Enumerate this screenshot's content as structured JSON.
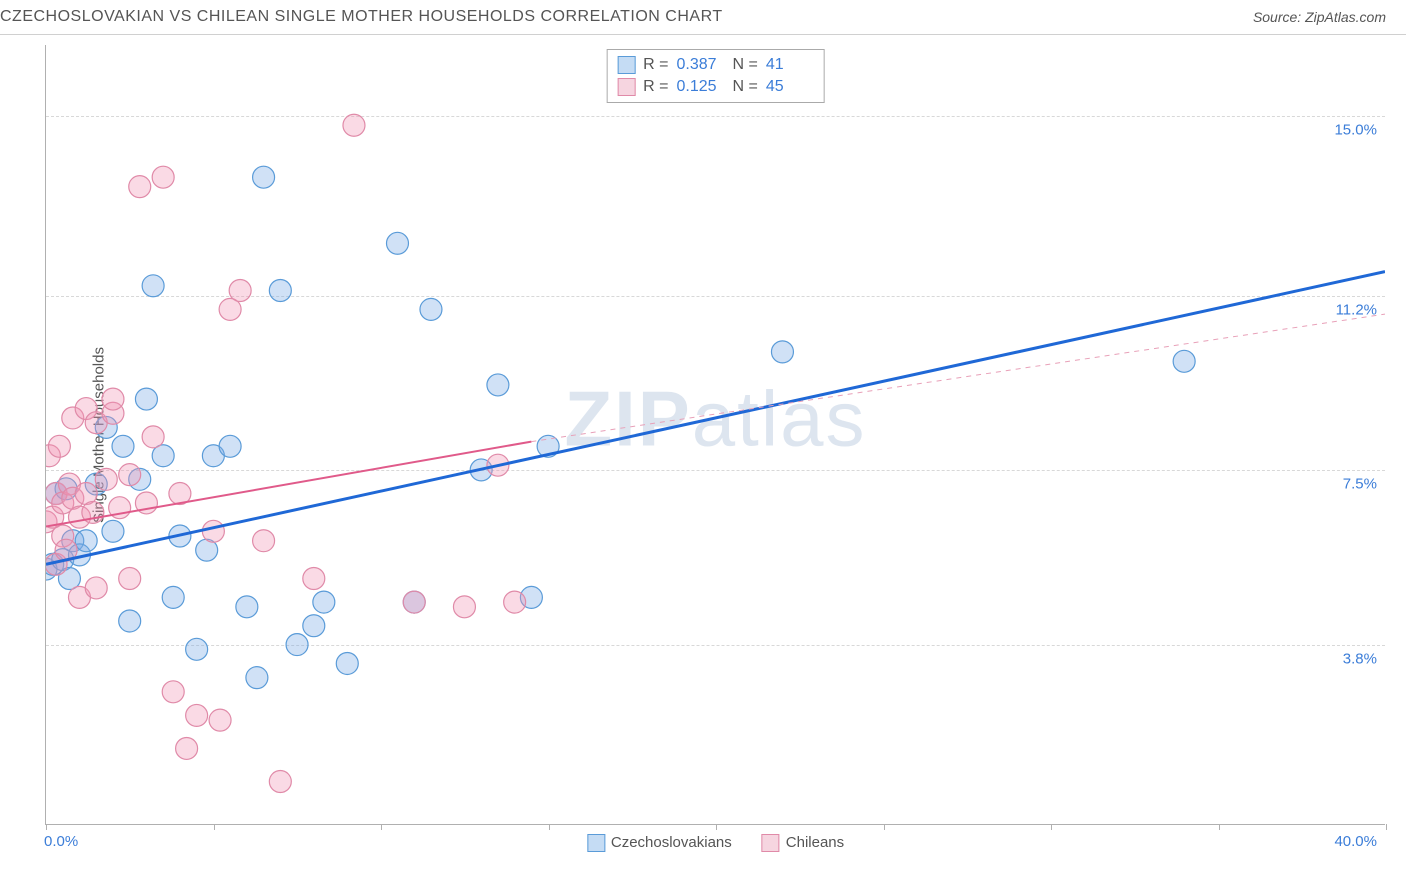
{
  "header": {
    "title": "CZECHOSLOVAKIAN VS CHILEAN SINGLE MOTHER HOUSEHOLDS CORRELATION CHART",
    "source": "Source: ZipAtlas.com"
  },
  "chart": {
    "type": "scatter",
    "y_axis_label": "Single Mother Households",
    "xlim": [
      0,
      40
    ],
    "ylim": [
      0,
      16.5
    ],
    "x_min_label": "0.0%",
    "x_max_label": "40.0%",
    "y_ticks": [
      {
        "value": 3.8,
        "label": "3.8%"
      },
      {
        "value": 7.5,
        "label": "7.5%"
      },
      {
        "value": 11.2,
        "label": "11.2%"
      },
      {
        "value": 15.0,
        "label": "15.0%"
      }
    ],
    "x_tick_positions": [
      0,
      5,
      10,
      15,
      20,
      25,
      30,
      35,
      40
    ],
    "background_color": "#ffffff",
    "grid_color": "#d8d8d8",
    "watermark": "ZIPatlas",
    "series": [
      {
        "id": "czech",
        "label": "Czechoslovakians",
        "color_fill": "rgba(120,170,230,0.35)",
        "color_stroke": "#5a9bd8",
        "swatch_fill": "#c5dcf4",
        "swatch_border": "#5a9bd8",
        "R": "0.387",
        "N": "41",
        "marker_radius": 11,
        "trend": {
          "x1": 0,
          "y1": 5.5,
          "x2": 40,
          "y2": 11.7,
          "stroke": "#1f68d6",
          "width": 3,
          "dash": "none"
        },
        "trend_extend": {
          "x1": 40,
          "y1": 11.7,
          "stroke": "#1f68d6",
          "width": 1,
          "dash": "4,4"
        },
        "points": [
          [
            0.0,
            5.4
          ],
          [
            0.2,
            5.5
          ],
          [
            0.3,
            7.0
          ],
          [
            0.5,
            5.6
          ],
          [
            0.6,
            7.1
          ],
          [
            0.7,
            5.2
          ],
          [
            0.8,
            6.0
          ],
          [
            1.0,
            5.7
          ],
          [
            1.2,
            6.0
          ],
          [
            1.5,
            7.2
          ],
          [
            1.8,
            8.4
          ],
          [
            2.0,
            6.2
          ],
          [
            2.3,
            8.0
          ],
          [
            2.5,
            4.3
          ],
          [
            2.8,
            7.3
          ],
          [
            3.0,
            9.0
          ],
          [
            3.2,
            11.4
          ],
          [
            3.5,
            7.8
          ],
          [
            3.8,
            4.8
          ],
          [
            4.0,
            6.1
          ],
          [
            4.5,
            3.7
          ],
          [
            4.8,
            5.8
          ],
          [
            5.0,
            7.8
          ],
          [
            5.5,
            8.0
          ],
          [
            6.0,
            4.6
          ],
          [
            6.3,
            3.1
          ],
          [
            6.5,
            13.7
          ],
          [
            7.0,
            11.3
          ],
          [
            7.5,
            3.8
          ],
          [
            8.0,
            4.2
          ],
          [
            8.3,
            4.7
          ],
          [
            9.0,
            3.4
          ],
          [
            10.5,
            12.3
          ],
          [
            11.0,
            4.7
          ],
          [
            11.5,
            10.9
          ],
          [
            13.0,
            7.5
          ],
          [
            13.5,
            9.3
          ],
          [
            14.5,
            4.8
          ],
          [
            15.0,
            8.0
          ],
          [
            22.0,
            10.0
          ],
          [
            34.0,
            9.8
          ]
        ]
      },
      {
        "id": "chilean",
        "label": "Chileans",
        "color_fill": "rgba(240,150,180,0.35)",
        "color_stroke": "#e08aa8",
        "swatch_fill": "#f6d5e0",
        "swatch_border": "#e08aa8",
        "R": "0.125",
        "N": "45",
        "marker_radius": 11,
        "trend": {
          "x1": 0,
          "y1": 6.3,
          "x2": 14.5,
          "y2": 8.1,
          "stroke": "#e05a8a",
          "width": 2,
          "dash": "none"
        },
        "trend_extend": {
          "x1": 14.5,
          "y1": 8.1,
          "x2": 40,
          "y2": 10.8,
          "stroke": "#e8a0b8",
          "width": 1,
          "dash": "5,5"
        },
        "points": [
          [
            0.0,
            6.4
          ],
          [
            0.1,
            7.8
          ],
          [
            0.2,
            6.5
          ],
          [
            0.3,
            7.0
          ],
          [
            0.3,
            5.5
          ],
          [
            0.4,
            8.0
          ],
          [
            0.5,
            6.1
          ],
          [
            0.5,
            6.8
          ],
          [
            0.6,
            5.8
          ],
          [
            0.7,
            7.2
          ],
          [
            0.8,
            6.9
          ],
          [
            0.8,
            8.6
          ],
          [
            1.0,
            6.5
          ],
          [
            1.0,
            4.8
          ],
          [
            1.2,
            7.0
          ],
          [
            1.2,
            8.8
          ],
          [
            1.4,
            6.6
          ],
          [
            1.5,
            8.5
          ],
          [
            1.5,
            5.0
          ],
          [
            1.8,
            7.3
          ],
          [
            2.0,
            8.7
          ],
          [
            2.0,
            9.0
          ],
          [
            2.2,
            6.7
          ],
          [
            2.5,
            7.4
          ],
          [
            2.5,
            5.2
          ],
          [
            2.8,
            13.5
          ],
          [
            3.0,
            6.8
          ],
          [
            3.2,
            8.2
          ],
          [
            3.5,
            13.7
          ],
          [
            3.8,
            2.8
          ],
          [
            4.0,
            7.0
          ],
          [
            4.2,
            1.6
          ],
          [
            4.5,
            2.3
          ],
          [
            5.0,
            6.2
          ],
          [
            5.2,
            2.2
          ],
          [
            5.5,
            10.9
          ],
          [
            5.8,
            11.3
          ],
          [
            6.5,
            6.0
          ],
          [
            7.0,
            0.9
          ],
          [
            8.0,
            5.2
          ],
          [
            9.2,
            14.8
          ],
          [
            11.0,
            4.7
          ],
          [
            12.5,
            4.6
          ],
          [
            13.5,
            7.6
          ],
          [
            14.0,
            4.7
          ]
        ]
      }
    ]
  }
}
